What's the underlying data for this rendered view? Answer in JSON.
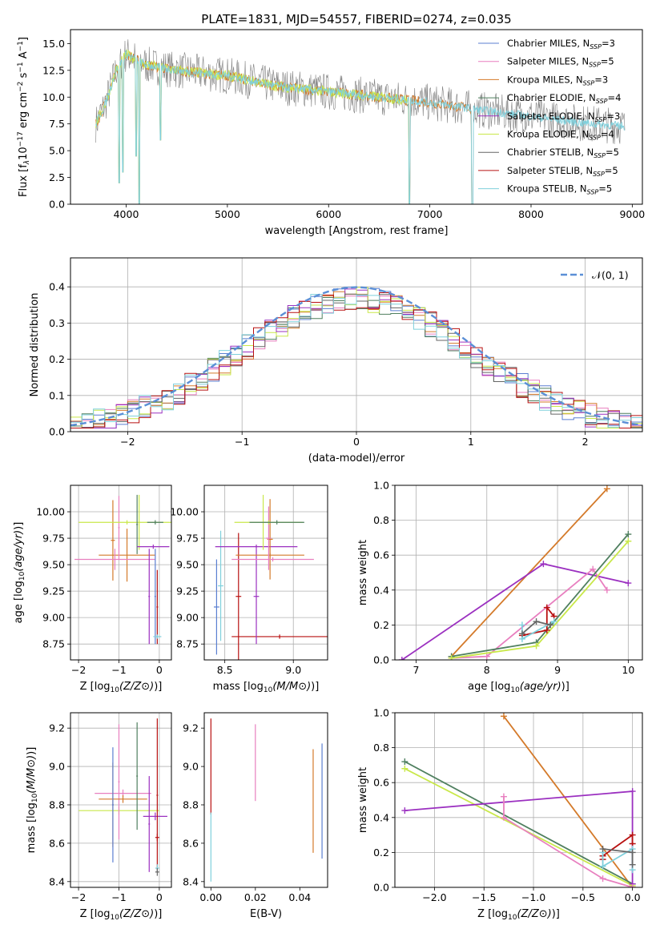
{
  "figure_title": "PLATE=1831, MJD=54557, FIBERID=0274, z=0.035",
  "colors": {
    "chabrier_miles": "#5b7fd1",
    "salpeter_miles": "#e87fbf",
    "kroupa_miles": "#d47a2a",
    "chabrier_elodie": "#4f7f5f",
    "salpeter_elodie": "#9b30c0",
    "kroupa_elodie": "#c9e84a",
    "chabrier_stelib": "#666666",
    "salpeter_stelib": "#b81010",
    "kroupa_stelib": "#7fd0dc",
    "normal_curve": "#5b8fd6",
    "grid": "#b0b0b0"
  },
  "chart_data": [
    {
      "id": "spectrum",
      "type": "line",
      "title": "PLATE=1831, MJD=54557, FIBERID=0274, z=0.035",
      "xlabel": "wavelength [Angstrom, rest frame]",
      "ylabel": "Flux [f_λ10^-17 erg cm^-2 s^-1 A^-1]",
      "xlim": [
        3450,
        9100
      ],
      "ylim": [
        0,
        16.3
      ],
      "xticks": [
        4000,
        5000,
        6000,
        7000,
        8000,
        9000
      ],
      "yticks": [
        0.0,
        2.5,
        5.0,
        7.5,
        10.0,
        12.5,
        15.0
      ],
      "ytick_labels": [
        "0.0",
        "2.5",
        "5.0",
        "7.5",
        "10.0",
        "12.5",
        "15.0"
      ],
      "grid": false,
      "legend_position": "top-right",
      "legend": [
        {
          "label": "Chabrier MILES, N",
          "sub": "SSP",
          "suffix": "=3",
          "color_key": "chabrier_miles"
        },
        {
          "label": "Salpeter MILES, N",
          "sub": "SSP",
          "suffix": "=5",
          "color_key": "salpeter_miles"
        },
        {
          "label": "Kroupa MILES, N",
          "sub": "SSP",
          "suffix": "=3",
          "color_key": "kroupa_miles"
        },
        {
          "label": "Chabrier ELODIE, N",
          "sub": "SSP",
          "suffix": "=4",
          "color_key": "chabrier_elodie"
        },
        {
          "label": "Salpeter ELODIE, N",
          "sub": "SSP",
          "suffix": "=3",
          "color_key": "salpeter_elodie"
        },
        {
          "label": "Kroupa ELODIE, N",
          "sub": "SSP",
          "suffix": "=4",
          "color_key": "kroupa_elodie"
        },
        {
          "label": "Chabrier STELIB, N",
          "sub": "SSP",
          "suffix": "=5",
          "color_key": "chabrier_stelib"
        },
        {
          "label": "Salpeter STELIB, N",
          "sub": "SSP",
          "suffix": "=5",
          "color_key": "salpeter_stelib"
        },
        {
          "label": "Kroupa STELIB, N",
          "sub": "SSP",
          "suffix": "=5",
          "color_key": "kroupa_stelib"
        }
      ],
      "model_trend": {
        "x": [
          3700,
          3800,
          3900,
          4000,
          4200,
          4500,
          5000,
          5500,
          6000,
          6500,
          7000,
          7500,
          8000,
          8500,
          8900
        ],
        "y": [
          7.5,
          9.5,
          12.5,
          14.0,
          13.0,
          12.5,
          12.0,
          11.0,
          10.5,
          10.0,
          9.5,
          8.8,
          8.2,
          7.6,
          7.3
        ]
      },
      "model_ends": {
        "miles_xmax": 7420,
        "elodie_xmax": 6800,
        "stelib_xmax": 8930
      },
      "absorption_dips": [
        {
          "x": 3933,
          "y": 2.0
        },
        {
          "x": 3968,
          "y": 3.0
        },
        {
          "x": 4101,
          "y": 4.5
        },
        {
          "x": 4130,
          "y": 0.0
        },
        {
          "x": 4340,
          "y": 6.0
        },
        {
          "x": 6800,
          "y": 0.0
        },
        {
          "x": 7420,
          "y": 0.0
        }
      ]
    },
    {
      "id": "residuals",
      "type": "line",
      "xlabel": "(data-model)/error",
      "ylabel": "Normed distribution",
      "xlim": [
        -2.5,
        2.5
      ],
      "ylim": [
        0,
        0.48
      ],
      "xticks": [
        -2,
        -1,
        0,
        1,
        2
      ],
      "xtick_labels": [
        "−2",
        "−1",
        "0",
        "1",
        "2"
      ],
      "yticks": [
        0.0,
        0.1,
        0.2,
        0.3,
        0.4
      ],
      "ytick_labels": [
        "0.0",
        "0.1",
        "0.2",
        "0.3",
        "0.4"
      ],
      "grid": true,
      "legend_position": "top-right",
      "legend_label": "𝒩(0, 1)",
      "histogram": {
        "bin_edges_from": -2.5,
        "bin_width": 0.1,
        "n_bins": 50,
        "envelope": "normal(0,1) with per-model jitter"
      }
    },
    {
      "id": "age_vs_Z",
      "type": "scatter",
      "xlabel": "Z [log10(Z/Z⊙)]",
      "ylabel": "age  [log10(age/yr)]",
      "xlim": [
        -2.2,
        0.3
      ],
      "ylim": [
        8.6,
        10.25
      ],
      "xticks": [
        -2,
        -1,
        0
      ],
      "xtick_labels": [
        "−2",
        "−1",
        "0"
      ],
      "yticks": [
        8.75,
        9.0,
        9.25,
        9.5,
        9.75,
        10.0
      ],
      "ytick_labels": [
        "8.75",
        "9.00",
        "9.25",
        "9.50",
        "9.75",
        "10.00"
      ],
      "grid": true,
      "points": [
        {
          "color_key": "kroupa_miles",
          "x": -0.8,
          "y": 9.59,
          "xerr": 0.7,
          "yerr": 0.25
        },
        {
          "color_key": "kroupa_miles",
          "x": -1.15,
          "y": 9.73,
          "xerr": 0.05,
          "yerr": 0.38
        },
        {
          "color_key": "salpeter_miles",
          "x": -1.1,
          "y": 9.55,
          "xerr": 1.0,
          "yerr": 0.1
        },
        {
          "color_key": "salpeter_miles",
          "x": -1.0,
          "y": 9.85,
          "xerr": 0.02,
          "yerr": 0.3
        },
        {
          "color_key": "kroupa_elodie",
          "x": -0.8,
          "y": 9.9,
          "xerr": 1.2,
          "yerr": 0.02
        },
        {
          "color_key": "kroupa_elodie",
          "x": -0.5,
          "y": 9.9,
          "xerr": 0.02,
          "yerr": 0.26
        },
        {
          "color_key": "chabrier_elodie",
          "x": -0.55,
          "y": 9.88,
          "xerr": 0.02,
          "yerr": 0.28
        },
        {
          "color_key": "chabrier_elodie",
          "x": -0.1,
          "y": 9.9,
          "xerr": 0.2,
          "yerr": 0.02
        },
        {
          "color_key": "salpeter_elodie",
          "x": -0.15,
          "y": 9.67,
          "xerr": 0.4,
          "yerr": 0.02
        },
        {
          "color_key": "salpeter_elodie",
          "x": -0.25,
          "y": 9.2,
          "xerr": 0.02,
          "yerr": 0.45
        },
        {
          "color_key": "chabrier_miles",
          "x": -0.1,
          "y": 9.2,
          "xerr": 0.02,
          "yerr": 0.45
        },
        {
          "color_key": "salpeter_stelib",
          "x": -0.05,
          "y": 9.1,
          "xerr": 0.02,
          "yerr": 0.35
        },
        {
          "color_key": "kroupa_stelib",
          "x": -0.05,
          "y": 8.82,
          "xerr": 0.1,
          "yerr": 0.02
        }
      ]
    },
    {
      "id": "age_vs_mass",
      "type": "scatter",
      "xlabel": "mass [log10(M/M⊙)]",
      "ylabel": "",
      "xlim": [
        8.35,
        9.25
      ],
      "ylim": [
        8.6,
        10.25
      ],
      "xticks": [
        8.5,
        9.0
      ],
      "xtick_labels": [
        "8.5",
        "9.0"
      ],
      "yticks": [
        8.75,
        9.0,
        9.25,
        9.5,
        9.75,
        10.0
      ],
      "ytick_labels": [
        "8.75",
        "9.00",
        "9.25",
        "9.50",
        "9.75",
        "10.00"
      ],
      "grid": true,
      "points": [
        {
          "color_key": "salpeter_stelib",
          "x": 8.6,
          "y": 9.2,
          "xerr": 0.02,
          "yerr": 0.6
        },
        {
          "color_key": "salpeter_stelib",
          "x": 8.9,
          "y": 8.82,
          "xerr": 0.35,
          "yerr": 0.02
        },
        {
          "color_key": "kroupa_stelib",
          "x": 8.47,
          "y": 9.3,
          "xerr": 0.02,
          "yerr": 0.52
        },
        {
          "color_key": "chabrier_miles",
          "x": 8.44,
          "y": 9.1,
          "xerr": 0.02,
          "yerr": 0.45
        },
        {
          "color_key": "salpeter_elodie",
          "x": 8.73,
          "y": 9.67,
          "xerr": 0.3,
          "yerr": 0.02
        },
        {
          "color_key": "salpeter_elodie",
          "x": 8.73,
          "y": 9.2,
          "xerr": 0.02,
          "yerr": 0.45
        },
        {
          "color_key": "kroupa_miles",
          "x": 8.83,
          "y": 9.59,
          "xerr": 0.25,
          "yerr": 0.02
        },
        {
          "color_key": "kroupa_miles",
          "x": 8.83,
          "y": 9.74,
          "xerr": 0.02,
          "yerr": 0.38
        },
        {
          "color_key": "salpeter_miles",
          "x": 8.85,
          "y": 9.55,
          "xerr": 0.3,
          "yerr": 0.02
        },
        {
          "color_key": "salpeter_miles",
          "x": 8.82,
          "y": 9.75,
          "xerr": 0.02,
          "yerr": 0.3
        },
        {
          "color_key": "kroupa_elodie",
          "x": 8.82,
          "y": 9.9,
          "xerr": 0.25,
          "yerr": 0.02
        },
        {
          "color_key": "kroupa_elodie",
          "x": 8.78,
          "y": 9.9,
          "xerr": 0.02,
          "yerr": 0.26
        },
        {
          "color_key": "chabrier_elodie",
          "x": 8.88,
          "y": 9.9,
          "xerr": 0.2,
          "yerr": 0.02
        }
      ]
    },
    {
      "id": "weight_vs_age",
      "type": "line",
      "xlabel": "age  [log10(age/yr)]",
      "ylabel": "mass weight",
      "xlim": [
        6.7,
        10.2
      ],
      "ylim": [
        0,
        1.0
      ],
      "xticks": [
        7,
        8,
        9,
        10
      ],
      "xtick_labels": [
        "7",
        "8",
        "9",
        "10"
      ],
      "yticks": [
        0.0,
        0.2,
        0.4,
        0.6,
        0.8,
        1.0
      ],
      "ytick_labels": [
        "0.0",
        "0.2",
        "0.4",
        "0.6",
        "0.8",
        "1.0"
      ],
      "grid": true,
      "series": [
        {
          "color_key": "kroupa_miles",
          "x": [
            7.5,
            9.7
          ],
          "y": [
            0.02,
            0.98
          ]
        },
        {
          "color_key": "salpeter_elodie",
          "x": [
            6.8,
            8.8,
            10.0
          ],
          "y": [
            0.0,
            0.55,
            0.44
          ]
        },
        {
          "color_key": "salpeter_miles",
          "x": [
            7.5,
            8.0,
            9.5,
            9.7
          ],
          "y": [
            0.01,
            0.02,
            0.52,
            0.4
          ]
        },
        {
          "color_key": "chabrier_elodie",
          "x": [
            7.5,
            8.7,
            10.0
          ],
          "y": [
            0.02,
            0.1,
            0.72
          ]
        },
        {
          "color_key": "kroupa_elodie",
          "x": [
            7.5,
            8.7,
            10.0
          ],
          "y": [
            0.01,
            0.08,
            0.68
          ]
        },
        {
          "color_key": "salpeter_stelib",
          "x": [
            8.5,
            8.85,
            8.85,
            8.95
          ],
          "y": [
            0.14,
            0.17,
            0.3,
            0.25
          ]
        },
        {
          "color_key": "kroupa_stelib",
          "x": [
            8.5,
            8.5,
            8.95
          ],
          "y": [
            0.2,
            0.12,
            0.22
          ]
        },
        {
          "color_key": "chabrier_stelib",
          "x": [
            8.5,
            8.7,
            8.9
          ],
          "y": [
            0.15,
            0.22,
            0.2
          ]
        }
      ]
    },
    {
      "id": "mass_vs_Z",
      "type": "scatter",
      "xlabel": "Z [log10(Z/Z⊙)]",
      "ylabel": "mass [log10(M/M⊙)]",
      "xlim": [
        -2.2,
        0.3
      ],
      "ylim": [
        8.37,
        9.28
      ],
      "xticks": [
        -2,
        -1,
        0
      ],
      "xtick_labels": [
        "−2",
        "−1",
        "0"
      ],
      "yticks": [
        8.4,
        8.6,
        8.8,
        9.0,
        9.2
      ],
      "ytick_labels": [
        "8.4",
        "8.6",
        "8.8",
        "9.0",
        "9.2"
      ],
      "grid": true,
      "points": [
        {
          "color_key": "kroupa_elodie",
          "x": -1.0,
          "y": 8.77,
          "xerr": 1.0,
          "yerr": 0.02
        },
        {
          "color_key": "salpeter_miles",
          "x": -0.9,
          "y": 8.86,
          "xerr": 0.7,
          "yerr": 0.02
        },
        {
          "color_key": "salpeter_miles",
          "x": -1.0,
          "y": 8.92,
          "xerr": 0.02,
          "yerr": 0.3
        },
        {
          "color_key": "kroupa_miles",
          "x": -0.9,
          "y": 8.83,
          "xerr": 0.6,
          "yerr": 0.02
        },
        {
          "color_key": "kroupa_miles",
          "x": -1.15,
          "y": 8.8,
          "xerr": 0.02,
          "yerr": 0.22
        },
        {
          "color_key": "chabrier_miles",
          "x": -1.15,
          "y": 8.8,
          "xerr": 0.02,
          "yerr": 0.3
        },
        {
          "color_key": "chabrier_elodie",
          "x": -0.55,
          "y": 8.95,
          "xerr": 0.02,
          "yerr": 0.28
        },
        {
          "color_key": "salpeter_elodie",
          "x": -0.1,
          "y": 8.74,
          "xerr": 0.3,
          "yerr": 0.02
        },
        {
          "color_key": "salpeter_elodie",
          "x": -0.25,
          "y": 8.7,
          "xerr": 0.02,
          "yerr": 0.25
        },
        {
          "color_key": "salpeter_stelib",
          "x": -0.05,
          "y": 8.85,
          "xerr": 0.02,
          "yerr": 0.4
        },
        {
          "color_key": "salpeter_stelib",
          "x": -0.05,
          "y": 8.63,
          "xerr": 0.05,
          "yerr": 0.02
        },
        {
          "color_key": "kroupa_stelib",
          "x": -0.05,
          "y": 8.47,
          "xerr": 0.05,
          "yerr": 0.02
        },
        {
          "color_key": "chabrier_stelib",
          "x": -0.05,
          "y": 8.45,
          "xerr": 0.05,
          "yerr": 0.02
        }
      ]
    },
    {
      "id": "mass_vs_EBV",
      "type": "scatter",
      "xlabel": "E(B-V)",
      "ylabel": "",
      "xlim": [
        -0.003,
        0.0525
      ],
      "ylim": [
        8.37,
        9.28
      ],
      "xticks": [
        0.0,
        0.02,
        0.04
      ],
      "xtick_labels": [
        "0.00",
        "0.02",
        "0.04"
      ],
      "yticks": [
        8.4,
        8.6,
        8.8,
        9.0,
        9.2
      ],
      "ytick_labels": [
        "8.4",
        "8.6",
        "8.8",
        "9.0",
        "9.2"
      ],
      "grid": false,
      "points": [
        {
          "color_key": "salpeter_stelib",
          "x": 0.0,
          "y": 9.0,
          "yerr": 0.25
        },
        {
          "color_key": "kroupa_stelib",
          "x": 0.0,
          "y": 8.58,
          "yerr": 0.18
        },
        {
          "color_key": "salpeter_miles",
          "x": 0.02,
          "y": 9.02,
          "yerr": 0.2
        },
        {
          "color_key": "kroupa_miles",
          "x": 0.046,
          "y": 8.82,
          "yerr": 0.27
        },
        {
          "color_key": "chabrier_miles",
          "x": 0.05,
          "y": 8.82,
          "yerr": 0.3
        }
      ]
    },
    {
      "id": "weight_vs_Z",
      "type": "line",
      "xlabel": "Z [log10(Z/Z⊙)]",
      "ylabel": "mass weight",
      "xlim": [
        -2.4,
        0.1
      ],
      "ylim": [
        0,
        1.0
      ],
      "xticks": [
        -2.0,
        -1.5,
        -1.0,
        -0.5,
        0.0
      ],
      "xtick_labels": [
        "−2.0",
        "−1.5",
        "−1.0",
        "−0.5",
        "0.0"
      ],
      "yticks": [
        0.0,
        0.2,
        0.4,
        0.6,
        0.8,
        1.0
      ],
      "ytick_labels": [
        "0.0",
        "0.2",
        "0.4",
        "0.6",
        "0.8",
        "1.0"
      ],
      "grid": true,
      "series": [
        {
          "color_key": "kroupa_miles",
          "x": [
            -1.3,
            0.0
          ],
          "y": [
            0.98,
            0.0
          ]
        },
        {
          "color_key": "chabrier_elodie",
          "x": [
            -2.3,
            0.0
          ],
          "y": [
            0.72,
            0.02
          ]
        },
        {
          "color_key": "kroupa_elodie",
          "x": [
            -2.3,
            0.0
          ],
          "y": [
            0.68,
            0.01
          ]
        },
        {
          "color_key": "salpeter_elodie",
          "x": [
            -2.3,
            0.0,
            0.0
          ],
          "y": [
            0.44,
            0.55,
            0.02
          ]
        },
        {
          "color_key": "salpeter_miles",
          "x": [
            -1.3,
            -1.3,
            -0.3,
            0.0
          ],
          "y": [
            0.52,
            0.4,
            0.05,
            0.0
          ]
        },
        {
          "color_key": "salpeter_stelib",
          "x": [
            -0.3,
            -0.3,
            0.0,
            0.0
          ],
          "y": [
            0.16,
            0.18,
            0.3,
            0.25
          ]
        },
        {
          "color_key": "kroupa_stelib",
          "x": [
            -0.3,
            -0.3,
            0.0,
            0.0
          ],
          "y": [
            0.2,
            0.12,
            0.22,
            0.1
          ]
        },
        {
          "color_key": "chabrier_stelib",
          "x": [
            -0.3,
            0.0,
            0.0
          ],
          "y": [
            0.22,
            0.2,
            0.13
          ]
        }
      ]
    }
  ]
}
